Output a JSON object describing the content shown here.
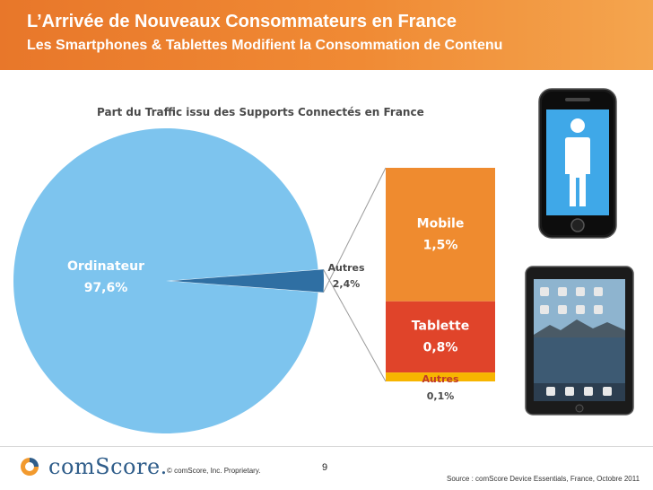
{
  "header": {
    "title": "L’Arrivée de Nouveaux Consommateurs en France",
    "subtitle": "Les Smartphones & Tablettes Modifient la Consommation de Contenu"
  },
  "chart_data": {
    "type": "pie",
    "title": "Part du Traffic issu des Supports Connectés en France",
    "slices": [
      {
        "name": "Ordinateur",
        "label": "97,6%",
        "value": 97.6,
        "color": "#7dc4ee"
      },
      {
        "name": "Autres",
        "label": "2,4%",
        "value": 2.4,
        "color": "#2f6fa3"
      }
    ],
    "breakdown": {
      "type": "stacked-bar",
      "of": "Autres",
      "segments": [
        {
          "name": "Mobile",
          "label": "1,5%",
          "value": 1.5,
          "color": "#ef8b2f"
        },
        {
          "name": "Tablette",
          "label": "0,8%",
          "value": 0.8,
          "color": "#e0442a"
        },
        {
          "name": "Autres",
          "label": "0,1%",
          "value": 0.1,
          "color": "#f7b500"
        }
      ]
    }
  },
  "footer": {
    "logo_text": "comScore.",
    "copyright": "© comScore, Inc.      Proprietary.",
    "page_number": "9",
    "source": "Source : comScore Device Essentials, France, Octobre 2011"
  }
}
